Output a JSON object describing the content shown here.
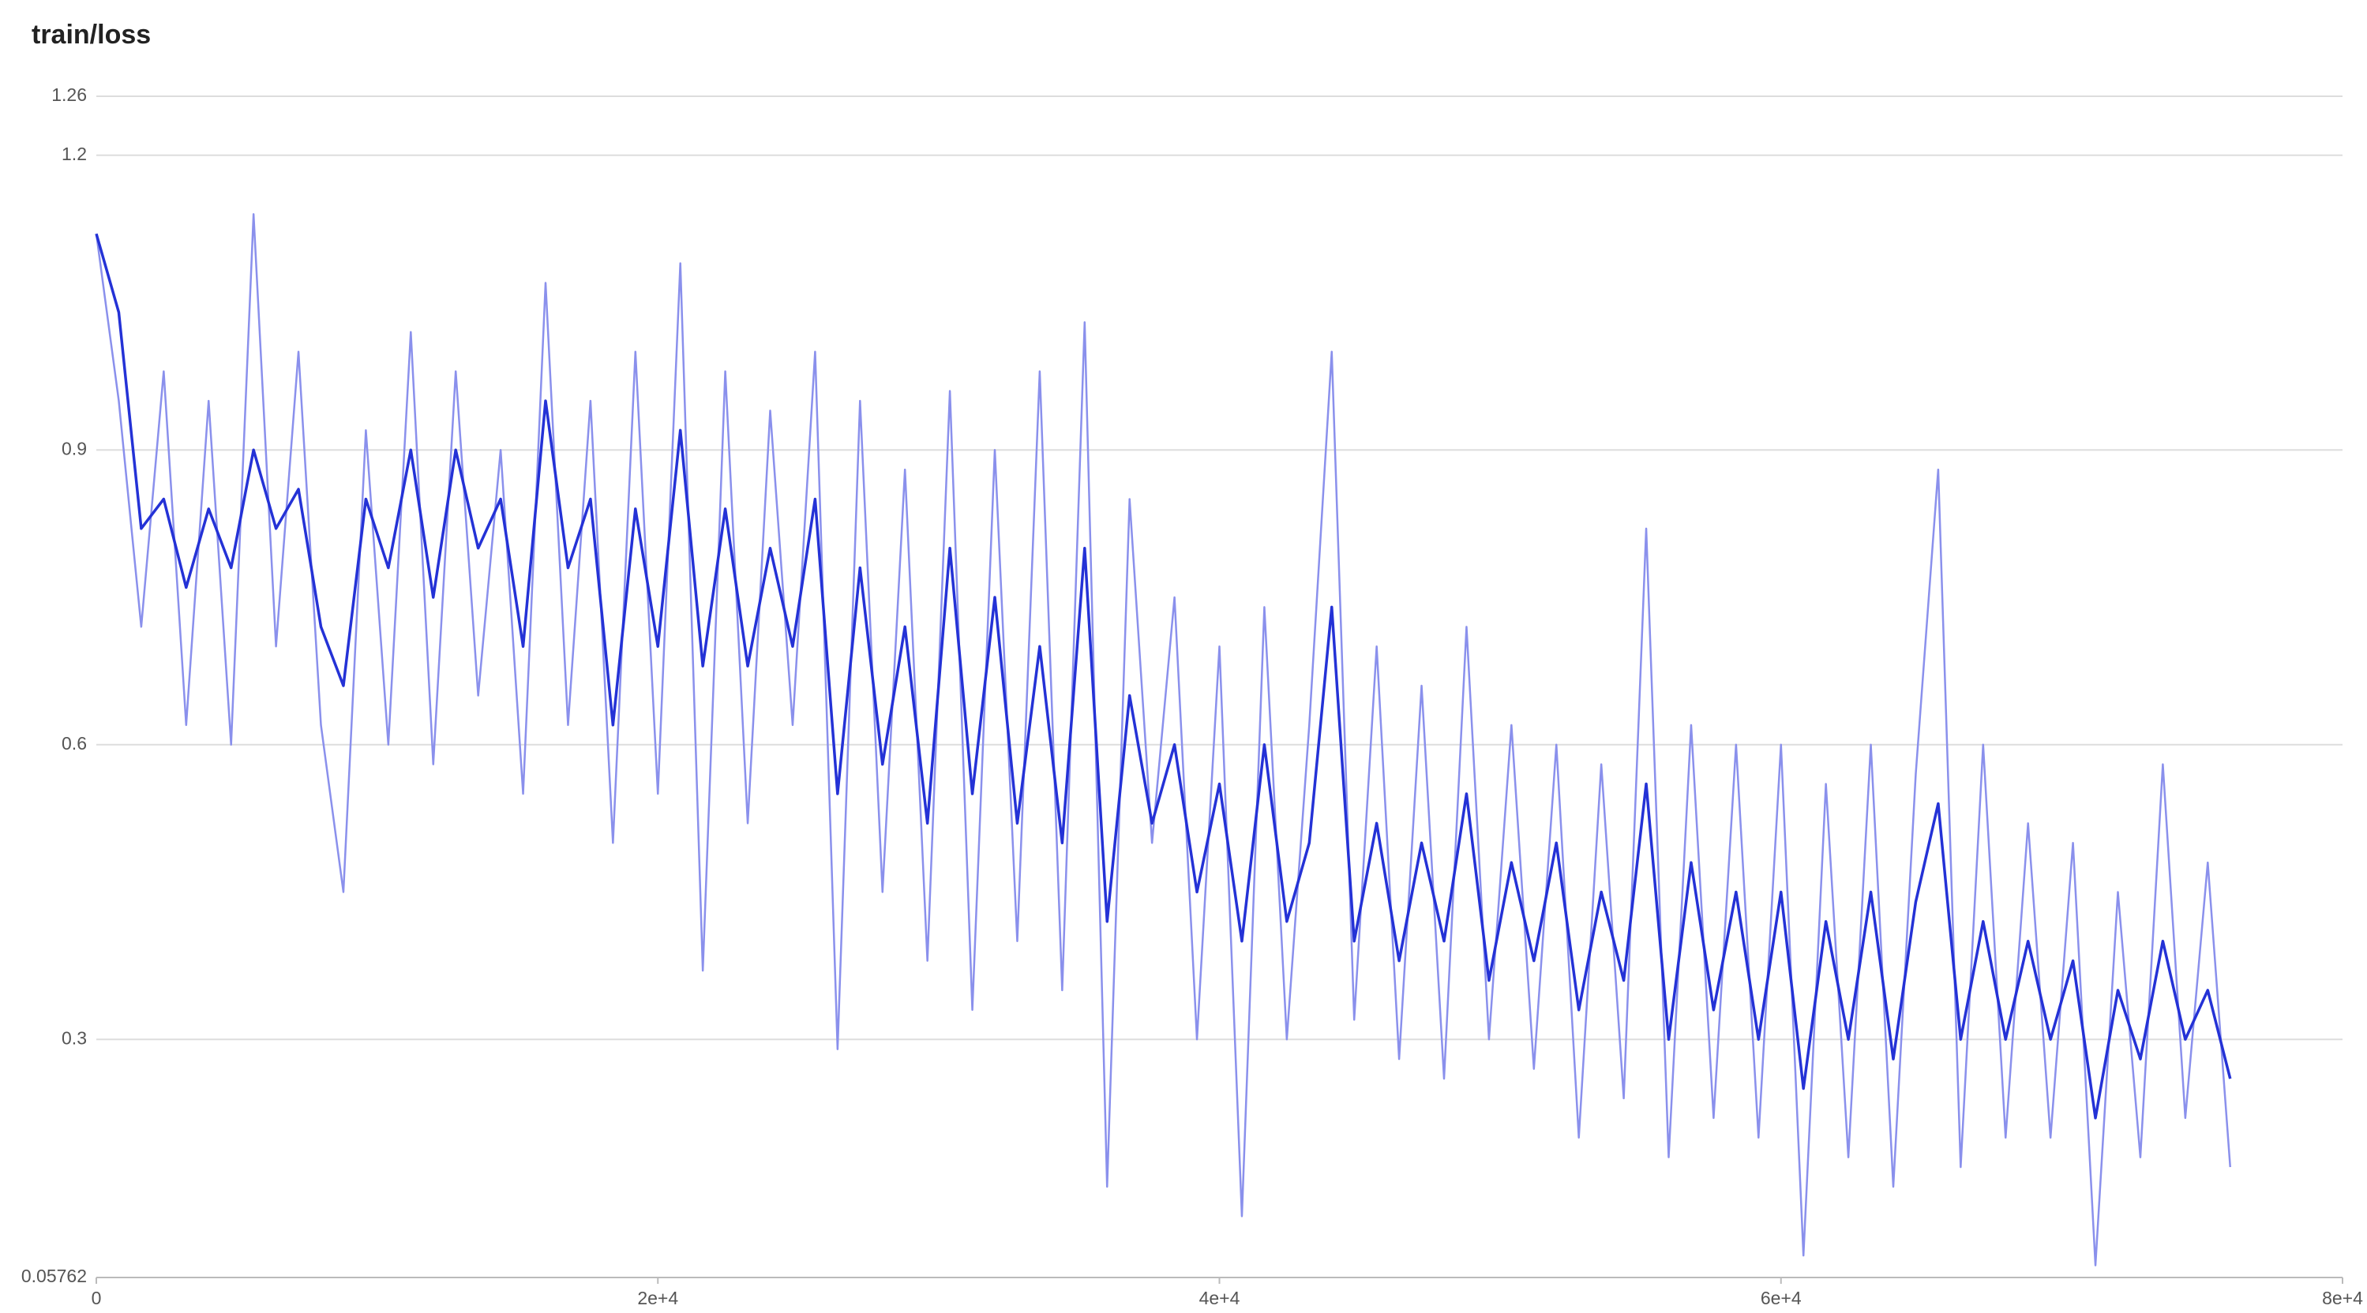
{
  "chart_data": {
    "type": "line",
    "title": "train/loss",
    "x": [
      0,
      800,
      1600,
      2400,
      3200,
      4000,
      4800,
      5600,
      6400,
      7200,
      8000,
      8800,
      9600,
      10400,
      11200,
      12000,
      12800,
      13600,
      14400,
      15200,
      16000,
      16800,
      17600,
      18400,
      19200,
      20000,
      20800,
      21600,
      22400,
      23200,
      24000,
      24800,
      25600,
      26400,
      27200,
      28000,
      28800,
      29600,
      30400,
      31200,
      32000,
      32800,
      33600,
      34400,
      35200,
      36000,
      36800,
      37600,
      38400,
      39200,
      40000,
      40800,
      41600,
      42400,
      43200,
      44000,
      44800,
      45600,
      46400,
      47200,
      48000,
      48800,
      49600,
      50400,
      51200,
      52000,
      52800,
      53600,
      54400,
      55200,
      56000,
      56800,
      57600,
      58400,
      59200,
      60000,
      60800,
      61600,
      62400,
      63200,
      64000,
      64800,
      65600,
      66400,
      67200,
      68000,
      68800,
      69600,
      70400,
      71200,
      72000,
      72800,
      73600,
      74400,
      75200,
      76000
    ],
    "series": [
      {
        "color": "#8a90ec",
        "values": [
          1.12,
          0.95,
          0.72,
          0.98,
          0.62,
          0.95,
          0.6,
          1.14,
          0.7,
          1.0,
          0.62,
          0.45,
          0.92,
          0.6,
          1.02,
          0.58,
          0.98,
          0.65,
          0.9,
          0.55,
          1.07,
          0.62,
          0.95,
          0.5,
          1.0,
          0.55,
          1.09,
          0.37,
          0.98,
          0.52,
          0.94,
          0.62,
          1.0,
          0.29,
          0.95,
          0.45,
          0.88,
          0.38,
          0.96,
          0.33,
          0.9,
          0.4,
          0.98,
          0.35,
          1.03,
          0.15,
          0.85,
          0.5,
          0.75,
          0.3,
          0.7,
          0.12,
          0.74,
          0.3,
          0.62,
          1.0,
          0.32,
          0.7,
          0.28,
          0.66,
          0.26,
          0.72,
          0.3,
          0.62,
          0.27,
          0.6,
          0.2,
          0.58,
          0.24,
          0.82,
          0.18,
          0.62,
          0.22,
          0.6,
          0.2,
          0.6,
          0.08,
          0.56,
          0.18,
          0.6,
          0.15,
          0.57,
          0.88,
          0.17,
          0.6,
          0.2,
          0.52,
          0.2,
          0.5,
          0.07,
          0.45,
          0.18,
          0.58,
          0.22,
          0.48,
          0.17
        ]
      },
      {
        "color": "#2432d6",
        "values": [
          1.12,
          1.04,
          0.82,
          0.85,
          0.76,
          0.84,
          0.78,
          0.9,
          0.82,
          0.86,
          0.72,
          0.66,
          0.85,
          0.78,
          0.9,
          0.75,
          0.9,
          0.8,
          0.85,
          0.7,
          0.95,
          0.78,
          0.85,
          0.62,
          0.84,
          0.7,
          0.92,
          0.68,
          0.84,
          0.68,
          0.8,
          0.7,
          0.85,
          0.55,
          0.78,
          0.58,
          0.72,
          0.52,
          0.8,
          0.55,
          0.75,
          0.52,
          0.7,
          0.5,
          0.8,
          0.42,
          0.65,
          0.52,
          0.6,
          0.45,
          0.56,
          0.4,
          0.6,
          0.42,
          0.5,
          0.74,
          0.4,
          0.52,
          0.38,
          0.5,
          0.4,
          0.55,
          0.36,
          0.48,
          0.38,
          0.5,
          0.33,
          0.45,
          0.36,
          0.56,
          0.3,
          0.48,
          0.33,
          0.45,
          0.3,
          0.45,
          0.25,
          0.42,
          0.3,
          0.45,
          0.28,
          0.44,
          0.54,
          0.3,
          0.42,
          0.3,
          0.4,
          0.3,
          0.38,
          0.22,
          0.35,
          0.28,
          0.4,
          0.3,
          0.35,
          0.26
        ]
      }
    ],
    "xlim": [
      0,
      80000
    ],
    "xticks": [
      0,
      {
        "value": 20000,
        "label": "2e+4"
      },
      {
        "value": 40000,
        "label": "4e+4"
      },
      {
        "value": 60000,
        "label": "6e+4"
      },
      {
        "value": 80000,
        "label": "8e+4"
      }
    ],
    "ylim": [
      0.05762,
      1.26
    ],
    "yticks": [
      {
        "value": 0.05762,
        "label": "0.05762"
      },
      0.3,
      0.6,
      0.9,
      1.2,
      1.26
    ],
    "grid": true
  }
}
